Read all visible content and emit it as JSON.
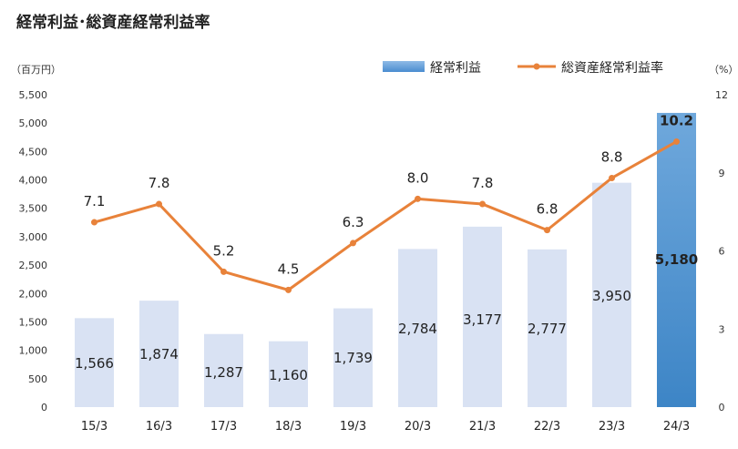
{
  "chart_data": {
    "type": "bar",
    "title": "経常利益･総資産経常利益率",
    "left_unit": "（百万円）",
    "right_unit": "（%）",
    "categories": [
      "15/3",
      "16/3",
      "17/3",
      "18/3",
      "19/3",
      "20/3",
      "21/3",
      "22/3",
      "23/3",
      "24/3"
    ],
    "bar_labels": [
      "1,566",
      "1,874",
      "1,287",
      "1,160",
      "1,739",
      "2,784",
      "3,177",
      "2,777",
      "3,950",
      "5,180"
    ],
    "line_labels": [
      "7.1",
      "7.8",
      "5.2",
      "4.5",
      "6.3",
      "8.0",
      "7.8",
      "6.8",
      "8.8",
      "10.2"
    ],
    "series": [
      {
        "name": "経常利益",
        "type": "bar",
        "axis": "left",
        "values": [
          1566,
          1874,
          1287,
          1160,
          1739,
          2784,
          3177,
          2777,
          3950,
          5180
        ]
      },
      {
        "name": "総資産経常利益率",
        "type": "line",
        "axis": "right",
        "values": [
          7.1,
          7.8,
          5.2,
          4.5,
          6.3,
          8.0,
          7.8,
          6.8,
          8.8,
          10.2
        ]
      }
    ],
    "y_left": {
      "min": 0,
      "max": 5500,
      "ticks": [
        0,
        500,
        1000,
        1500,
        2000,
        2500,
        3000,
        3500,
        4000,
        4500,
        5000,
        5500
      ],
      "tick_labels": [
        "0",
        "500",
        "1,000",
        "1,500",
        "2,000",
        "2,500",
        "3,000",
        "3,500",
        "4,000",
        "4,500",
        "5,000",
        "5,500"
      ]
    },
    "y_right": {
      "min": 0,
      "max": 12,
      "ticks": [
        0,
        3,
        6,
        9,
        12
      ],
      "tick_labels": [
        "0",
        "3",
        "6",
        "9",
        "12"
      ]
    },
    "highlight_index": 9,
    "legend_position": "top-right",
    "grid": false,
    "colors": {
      "bar": "#d9e2f3",
      "bar_highlight_top": "#6fa8dc",
      "bar_highlight_bottom": "#3d85c6",
      "line": "#e8823a",
      "legend_bar": "#5b9bd5"
    }
  }
}
